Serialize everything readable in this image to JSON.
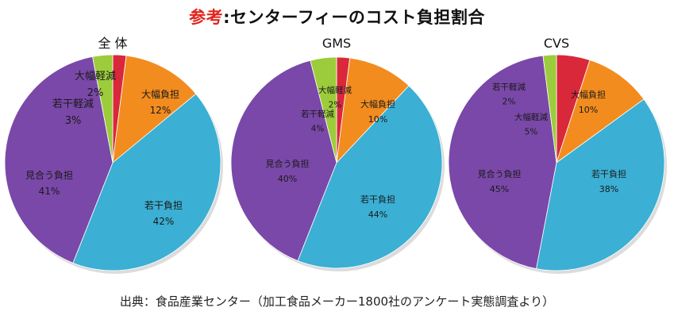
{
  "title": {
    "lead": "参考",
    "separator": ":",
    "main": "センターフィーのコスト負担割合"
  },
  "source": "出典：食品産業センター（加工食品メーカー1800社のアンケート実態調査より）",
  "chart_data": {
    "type": "pie",
    "colors": {
      "大幅軽減": "#d9283a",
      "大幅負担": "#f28c1f",
      "若干負担": "#3bafd4",
      "見合う負担": "#7a48a8",
      "若干軽減": "#9ccc3c"
    },
    "charts": [
      {
        "title": "全 体",
        "slices": [
          {
            "label": "大幅軽減",
            "value": 2,
            "value_label": "2%"
          },
          {
            "label": "大幅負担",
            "value": 12,
            "value_label": "12%"
          },
          {
            "label": "若干負担",
            "value": 42,
            "value_label": "42%"
          },
          {
            "label": "見合う負担",
            "value": 41,
            "value_label": "41%"
          },
          {
            "label": "若干軽減",
            "value": 3,
            "value_label": "3%"
          }
        ]
      },
      {
        "title": "GMS",
        "slices": [
          {
            "label": "大幅軽減",
            "value": 2,
            "value_label": "2%"
          },
          {
            "label": "大幅負担",
            "value": 10,
            "value_label": "10%"
          },
          {
            "label": "若干負担",
            "value": 44,
            "value_label": "44%"
          },
          {
            "label": "見合う負担",
            "value": 40,
            "value_label": "40%"
          },
          {
            "label": "若干軽減",
            "value": 4,
            "value_label": "4%"
          }
        ]
      },
      {
        "title": "CVS",
        "slices": [
          {
            "label": "大幅軽減",
            "value": 5,
            "value_label": "5%"
          },
          {
            "label": "大幅負担",
            "value": 10,
            "value_label": "10%"
          },
          {
            "label": "若干負担",
            "value": 38,
            "value_label": "38%"
          },
          {
            "label": "見合う負担",
            "value": 45,
            "value_label": "45%"
          },
          {
            "label": "若干軽減",
            "value": 2,
            "value_label": "2%"
          }
        ]
      }
    ]
  }
}
